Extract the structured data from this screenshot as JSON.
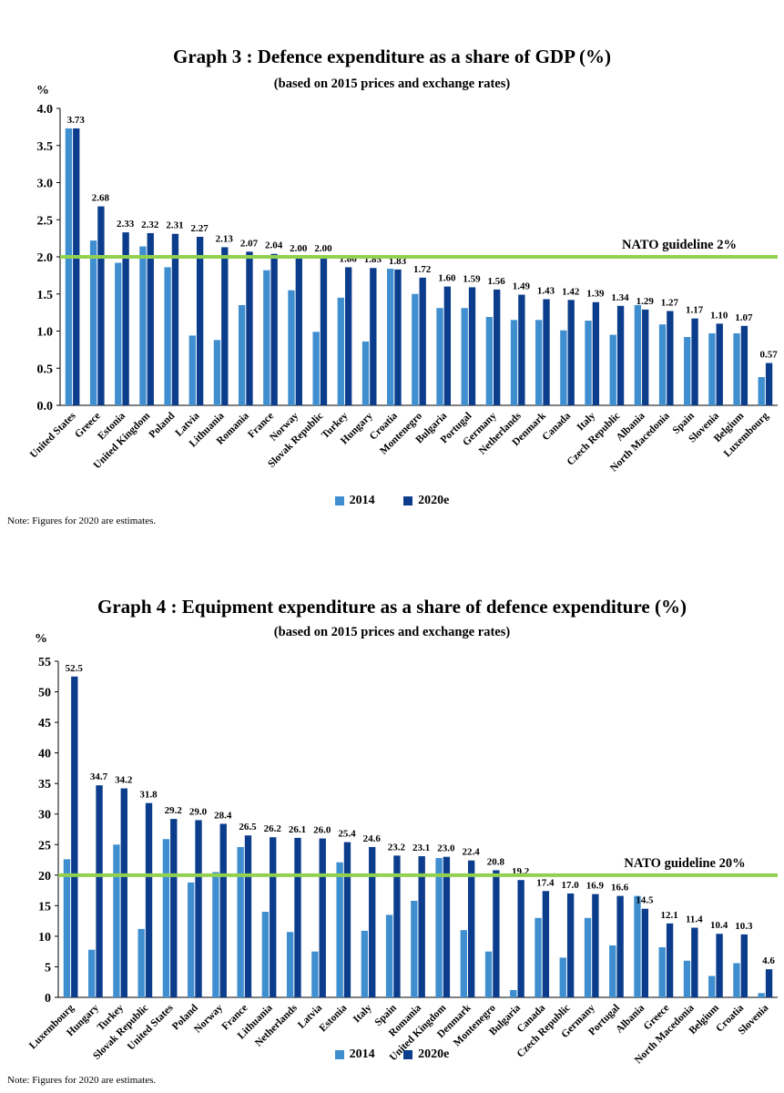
{
  "colors": {
    "series_2014": "#3f8fd0",
    "series_2020": "#0b3d8c",
    "guideline": "#92d050",
    "axis": "#000000"
  },
  "chart_data": [
    {
      "type": "bar",
      "title": "Graph 3 : Defence expenditure as a share of GDP (%)",
      "subtitle": "(based on 2015 prices and exchange rates)",
      "unit_label": "%",
      "ylim": [
        0,
        4
      ],
      "yticks": [
        "0.0",
        "0.5",
        "1.0",
        "1.5",
        "2.0",
        "2.5",
        "3.0",
        "3.5",
        "4.0"
      ],
      "grid": false,
      "legend_position": "bottom",
      "categories": [
        "United States",
        "Greece",
        "Estonia",
        "United Kingdom",
        "Poland",
        "Latvia",
        "Lithuania",
        "Romania",
        "France",
        "Norway",
        "Slovak Republic",
        "Turkey",
        "Hungary",
        "Croatia",
        "Montenegro",
        "Bulgaria",
        "Portugal",
        "Germany",
        "Netherlands",
        "Denmark",
        "Canada",
        "Italy",
        "Czech Republic",
        "Albania",
        "North Macedonia",
        "Spain",
        "Slovenia",
        "Belgium",
        "Luxembourg"
      ],
      "series": [
        {
          "name": "2014",
          "values": [
            3.73,
            2.22,
            1.92,
            2.14,
            1.86,
            0.94,
            0.88,
            1.35,
            1.82,
            1.55,
            0.99,
            1.45,
            0.86,
            1.84,
            1.5,
            1.31,
            1.31,
            1.19,
            1.15,
            1.15,
            1.01,
            1.14,
            0.95,
            1.35,
            1.09,
            0.92,
            0.97,
            0.97,
            0.38
          ]
        },
        {
          "name": "2020e",
          "values": [
            3.73,
            2.68,
            2.33,
            2.32,
            2.31,
            2.27,
            2.13,
            2.07,
            2.04,
            2.0,
            2.0,
            1.86,
            1.85,
            1.83,
            1.72,
            1.6,
            1.59,
            1.56,
            1.49,
            1.43,
            1.42,
            1.39,
            1.34,
            1.29,
            1.27,
            1.17,
            1.1,
            1.07,
            0.57
          ]
        }
      ],
      "data_labels": [
        "3.73",
        "2.68",
        "2.33",
        "2.32",
        "2.31",
        "2.27",
        "2.13",
        "2.07",
        "2.04",
        "2.00",
        "2.00",
        "1.86",
        "1.85",
        "1.83",
        "1.72",
        "1.60",
        "1.59",
        "1.56",
        "1.49",
        "1.43",
        "1.42",
        "1.39",
        "1.34",
        "1.29",
        "1.27",
        "1.17",
        "1.10",
        "1.07",
        "0.57"
      ],
      "guideline": {
        "value": 2.0,
        "label": "NATO guideline 2%"
      },
      "note": "Note: Figures for 2020 are estimates."
    },
    {
      "type": "bar",
      "title": "Graph 4 : Equipment expenditure as a share of defence expenditure (%)",
      "subtitle": "(based on 2015 prices and exchange rates)",
      "unit_label": "%",
      "ylim": [
        0,
        55
      ],
      "yticks": [
        "0",
        "5",
        "10",
        "15",
        "20",
        "25",
        "30",
        "35",
        "40",
        "45",
        "50",
        "55"
      ],
      "grid": false,
      "legend_position": "bottom",
      "categories": [
        "Luxembourg",
        "Hungary",
        "Turkey",
        "Slovak Republic",
        "United States",
        "Poland",
        "Norway",
        "France",
        "Lithuania",
        "Netherlands",
        "Latvia",
        "Estonia",
        "Italy",
        "Spain",
        "Romania",
        "United Kingdom",
        "Denmark",
        "Montenegro",
        "Bulgaria",
        "Canada",
        "Czech Republic",
        "Germany",
        "Portugal",
        "Albania",
        "Greece",
        "North Macedonia",
        "Belgium",
        "Croatia",
        "Slovenia"
      ],
      "series": [
        {
          "name": "2014",
          "values": [
            22.6,
            7.8,
            25.0,
            11.2,
            25.9,
            18.8,
            20.5,
            24.6,
            14.0,
            10.7,
            7.5,
            22.1,
            10.9,
            13.5,
            15.8,
            22.8,
            11.0,
            7.5,
            1.2,
            13.0,
            6.5,
            13.0,
            8.5,
            16.6,
            8.2,
            6.0,
            3.5,
            5.6,
            0.7
          ]
        },
        {
          "name": "2020e",
          "values": [
            52.5,
            34.7,
            34.2,
            31.8,
            29.2,
            29.0,
            28.4,
            26.5,
            26.2,
            26.1,
            26.0,
            25.4,
            24.6,
            23.2,
            23.1,
            23.0,
            22.4,
            20.8,
            19.2,
            17.4,
            17.0,
            16.9,
            16.6,
            14.5,
            12.1,
            11.4,
            10.4,
            10.3,
            4.6
          ]
        }
      ],
      "data_labels": [
        "52.5",
        "34.7",
        "34.2",
        "31.8",
        "29.2",
        "29.0",
        "28.4",
        "26.5",
        "26.2",
        "26.1",
        "26.0",
        "25.4",
        "24.6",
        "23.2",
        "23.1",
        "23.0",
        "22.4",
        "20.8",
        "19.2",
        "17.4",
        "17.0",
        "16.9",
        "16.6",
        "14.5",
        "12.1",
        "11.4",
        "10.4",
        "10.3",
        "4.6"
      ],
      "guideline": {
        "value": 20,
        "label": "NATO guideline 20%"
      },
      "note": "Note: Figures for 2020 are estimates."
    }
  ]
}
